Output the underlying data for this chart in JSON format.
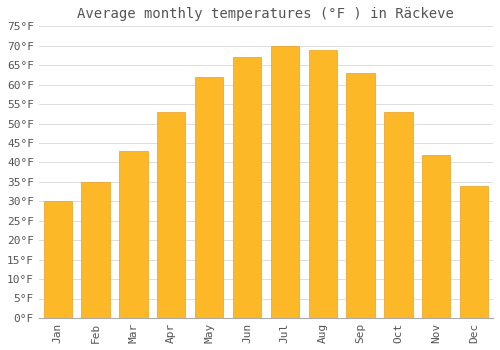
{
  "title": "Average monthly temperatures (°F ) in Räckeve",
  "months": [
    "Jan",
    "Feb",
    "Mar",
    "Apr",
    "May",
    "Jun",
    "Jul",
    "Aug",
    "Sep",
    "Oct",
    "Nov",
    "Dec"
  ],
  "values": [
    30,
    35,
    43,
    53,
    62,
    67,
    70,
    69,
    63,
    53,
    42,
    34
  ],
  "bar_color": "#FDB827",
  "bar_edge_color": "#E8A020",
  "background_color": "#FFFFFF",
  "grid_color": "#DDDDDD",
  "text_color": "#555555",
  "ylim": [
    0,
    75
  ],
  "yticks": [
    0,
    5,
    10,
    15,
    20,
    25,
    30,
    35,
    40,
    45,
    50,
    55,
    60,
    65,
    70,
    75
  ],
  "title_fontsize": 10,
  "tick_fontsize": 8,
  "font_family": "monospace"
}
